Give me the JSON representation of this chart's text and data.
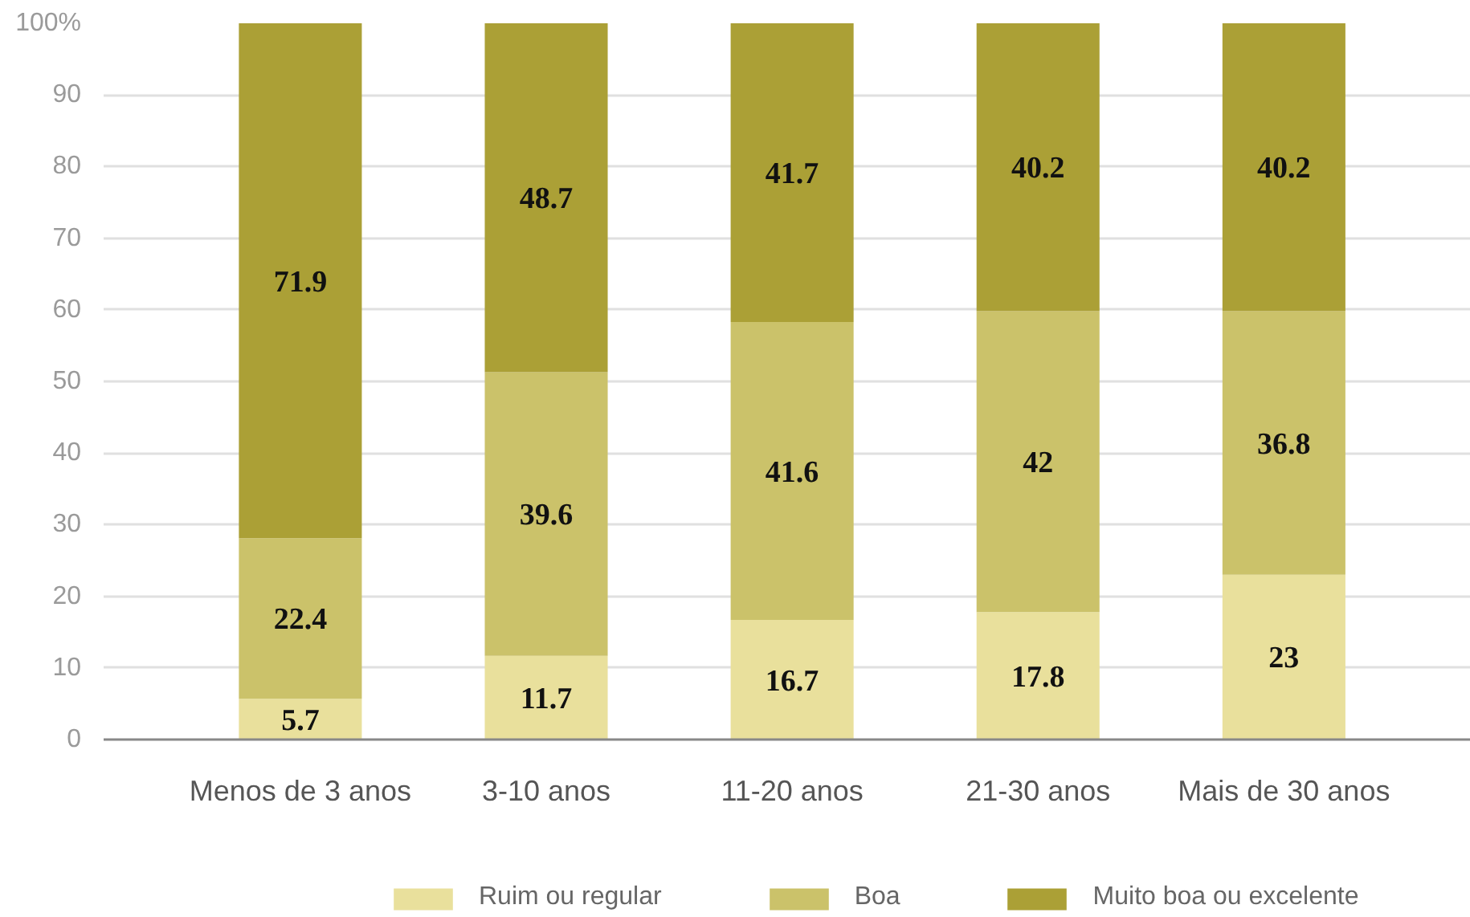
{
  "chart_data": {
    "type": "bar",
    "stacked": true,
    "categories": [
      "Menos de 3 anos",
      "3-10 anos",
      "11-20 anos",
      "21-30 anos",
      "Mais de 30 anos"
    ],
    "series": [
      {
        "name": "Ruim ou regular",
        "color": "#e9e09c",
        "values": [
          5.7,
          11.7,
          16.7,
          17.8,
          23
        ]
      },
      {
        "name": "Boa",
        "color": "#cbc26a",
        "values": [
          22.4,
          39.6,
          41.6,
          42,
          36.8
        ]
      },
      {
        "name": "Muito boa ou excelente",
        "color": "#aba036",
        "values": [
          71.9,
          48.7,
          41.7,
          40.2,
          40.2
        ]
      }
    ],
    "ylim": [
      0,
      100
    ],
    "yticks": [
      0,
      10,
      20,
      30,
      40,
      50,
      60,
      70,
      80,
      90,
      {
        "value": 100,
        "label": "100%"
      }
    ],
    "grid": "y",
    "legend": "bottom",
    "data_labels": true
  }
}
